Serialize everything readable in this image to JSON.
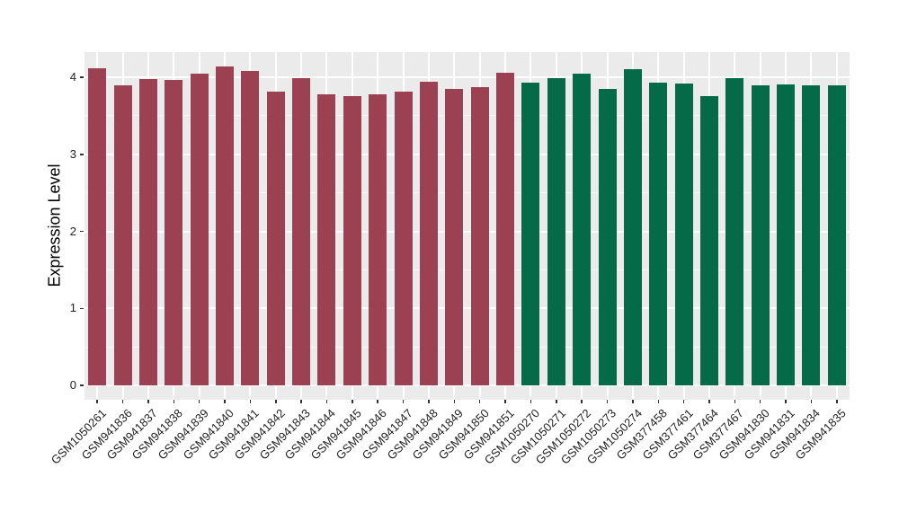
{
  "chart_data": {
    "type": "bar",
    "title": "",
    "xlabel": "",
    "ylabel": "Expression Level",
    "ylim": [
      0,
      4.33
    ],
    "yticks": [
      0,
      1,
      2,
      3,
      4
    ],
    "yticks_minor": [
      0.5,
      1.5,
      2.5,
      3.5
    ],
    "grid": "on",
    "legend_position": "none",
    "panel_background": "#EBEBEB",
    "grid_color": "#FFFFFF",
    "tick_color": "#333333",
    "categories": [
      "GSM1050261",
      "GSM941836",
      "GSM941837",
      "GSM941838",
      "GSM941839",
      "GSM941840",
      "GSM941841",
      "GSM941842",
      "GSM941843",
      "GSM941844",
      "GSM941845",
      "GSM941846",
      "GSM941847",
      "GSM941848",
      "GSM941849",
      "GSM941850",
      "GSM941851",
      "GSM1050270",
      "GSM1050271",
      "GSM1050272",
      "GSM1050273",
      "GSM1050274",
      "GSM377458",
      "GSM377461",
      "GSM377464",
      "GSM377467",
      "GSM941830",
      "GSM941831",
      "GSM941834",
      "GSM941835"
    ],
    "values": [
      4.12,
      3.89,
      3.98,
      3.96,
      4.05,
      4.14,
      4.08,
      3.81,
      3.99,
      3.78,
      3.76,
      3.78,
      3.81,
      3.94,
      3.85,
      3.87,
      4.06,
      3.93,
      3.99,
      4.05,
      3.85,
      4.1,
      3.93,
      3.92,
      3.76,
      3.99,
      3.9,
      3.91,
      3.89,
      3.9
    ],
    "groups": [
      "group_a",
      "group_a",
      "group_a",
      "group_a",
      "group_a",
      "group_a",
      "group_a",
      "group_a",
      "group_a",
      "group_a",
      "group_a",
      "group_a",
      "group_a",
      "group_a",
      "group_a",
      "group_a",
      "group_a",
      "group_b",
      "group_b",
      "group_b",
      "group_b",
      "group_b",
      "group_b",
      "group_b",
      "group_b",
      "group_b",
      "group_b",
      "group_b",
      "group_b",
      "group_b"
    ],
    "group_colors": {
      "group_a": "#9C4152",
      "group_b": "#046A47"
    }
  }
}
